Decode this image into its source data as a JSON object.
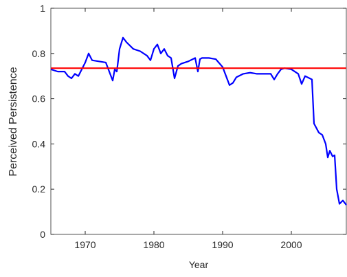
{
  "chart_data": {
    "type": "line",
    "xlabel": "Year",
    "ylabel": "Perceived Persistence",
    "xlim": [
      1965,
      2008
    ],
    "xticks": [
      1970,
      1980,
      1990,
      2000
    ],
    "ylim": [
      0,
      1
    ],
    "yticks": [
      0,
      0.2,
      0.4,
      0.6,
      0.8,
      1
    ],
    "reference_line": {
      "value": 0.735,
      "color": "#ff0000"
    },
    "series": [
      {
        "color": "#0000ff",
        "x": [
          1965,
          1966,
          1967,
          1967.5,
          1968,
          1968.5,
          1969,
          1969.5,
          1970,
          1970.5,
          1971,
          1972,
          1973,
          1973.5,
          1974,
          1974.3,
          1974.6,
          1975,
          1975.5,
          1976,
          1977,
          1978,
          1979,
          1979.5,
          1980,
          1980.5,
          1981,
          1981.5,
          1982,
          1982.5,
          1983,
          1983.5,
          1984,
          1985,
          1986,
          1986.4,
          1986.7,
          1987,
          1988,
          1989,
          1990,
          1990.5,
          1991,
          1991.5,
          1992,
          1993,
          1994,
          1995,
          1996,
          1997,
          1997.5,
          1998,
          1998.5,
          1999,
          2000,
          2001,
          2001.5,
          2002,
          2003,
          2003.3,
          2004,
          2004.5,
          2005,
          2005.3,
          2005.6,
          2006,
          2006.3,
          2006.6,
          2007,
          2007.5,
          2008
        ],
        "values": [
          0.73,
          0.72,
          0.72,
          0.7,
          0.69,
          0.71,
          0.7,
          0.73,
          0.76,
          0.8,
          0.77,
          0.765,
          0.76,
          0.72,
          0.68,
          0.73,
          0.72,
          0.82,
          0.87,
          0.85,
          0.82,
          0.81,
          0.79,
          0.77,
          0.82,
          0.84,
          0.8,
          0.82,
          0.79,
          0.78,
          0.69,
          0.745,
          0.755,
          0.765,
          0.78,
          0.72,
          0.775,
          0.78,
          0.78,
          0.775,
          0.74,
          0.7,
          0.66,
          0.67,
          0.695,
          0.71,
          0.715,
          0.71,
          0.71,
          0.71,
          0.685,
          0.71,
          0.73,
          0.735,
          0.73,
          0.71,
          0.665,
          0.7,
          0.685,
          0.49,
          0.45,
          0.44,
          0.4,
          0.34,
          0.37,
          0.345,
          0.35,
          0.2,
          0.135,
          0.15,
          0.13
        ]
      }
    ]
  }
}
